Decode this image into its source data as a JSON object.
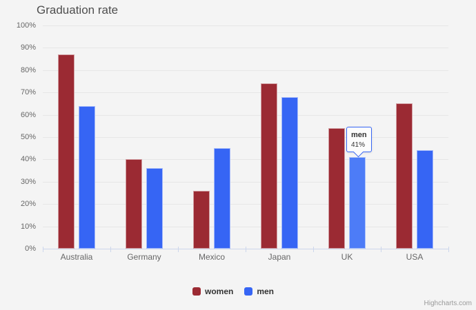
{
  "title": "Graduation rate",
  "chart_data": {
    "type": "bar",
    "title": "Graduation rate",
    "categories": [
      "Australia",
      "Germany",
      "Mexico",
      "Japan",
      "UK",
      "USA"
    ],
    "series": [
      {
        "name": "women",
        "color": "#9b2a33",
        "hover_color": "#b04a52",
        "values": [
          87,
          40,
          26,
          74,
          54,
          65
        ]
      },
      {
        "name": "men",
        "color": "#3665f4",
        "hover_color": "#4d7cf7",
        "values": [
          64,
          36,
          45,
          68,
          41,
          44
        ]
      }
    ],
    "xlabel": "",
    "ylabel": "",
    "ylim": [
      0,
      100
    ],
    "yticks": [
      0,
      10,
      20,
      30,
      40,
      50,
      60,
      70,
      80,
      90,
      100
    ],
    "ytick_suffix": "%",
    "grid": true,
    "legend_position": "bottom-center"
  },
  "ui_state": {
    "hovered_series": "men",
    "hovered_category": "UK"
  },
  "tooltip": {
    "series_name": "men",
    "value": "41%"
  },
  "credits": "Highcharts.com",
  "colors": {
    "background": "#f4f4f4",
    "gridline": "#e6e6e6",
    "axis_line": "#ccd6eb",
    "axis_text": "#666666",
    "title_text": "#4e4e4e",
    "tooltip_border": "#3665f4"
  }
}
